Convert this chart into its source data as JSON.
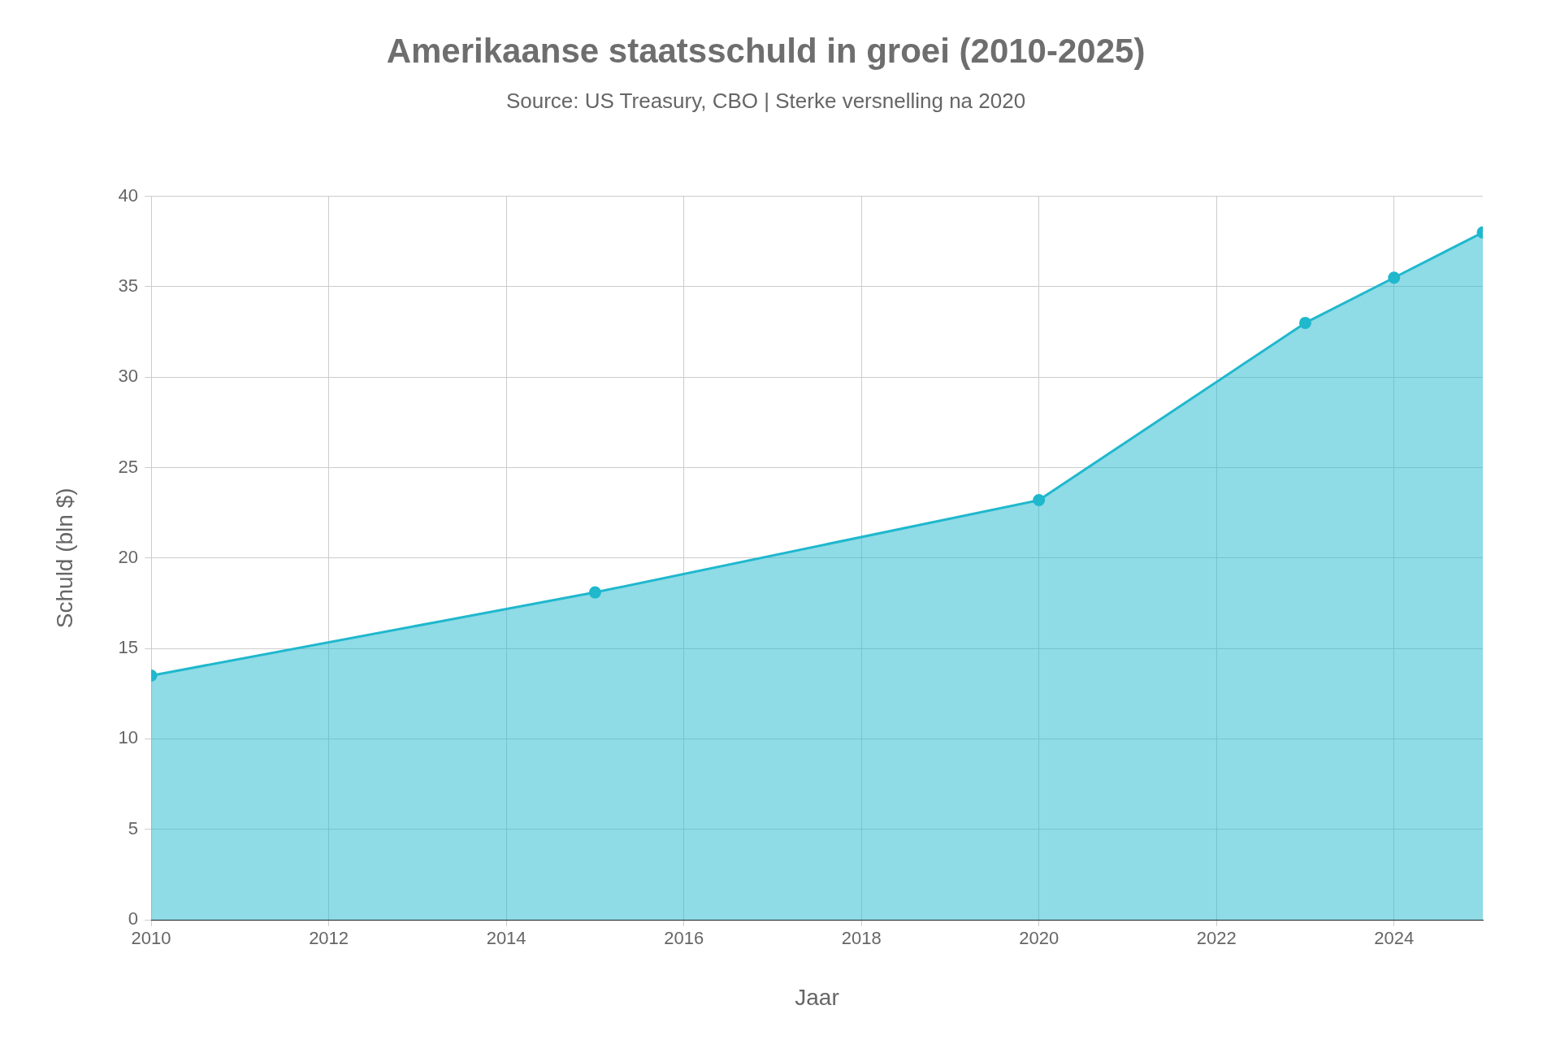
{
  "chart_data": {
    "type": "area",
    "title": "Amerikaanse staatsschuld in groei (2010-2025)",
    "subtitle": "Source: US Treasury, CBO | Sterke versnelling na 2020",
    "xlabel": "Jaar",
    "ylabel": "Schuld (bln $)",
    "x": [
      2010,
      2015,
      2020,
      2023,
      2024,
      2025
    ],
    "series": [
      {
        "color": "#1fb8cd",
        "values": [
          13.5,
          18.1,
          23.2,
          33.0,
          35.5,
          38.0
        ]
      }
    ],
    "xlim": [
      2010,
      2025
    ],
    "xticks": [
      2010,
      2012,
      2014,
      2016,
      2018,
      2020,
      2022,
      2024
    ],
    "ylim": [
      0,
      40
    ],
    "yticks": [
      0,
      5,
      10,
      15,
      20,
      25,
      30,
      35,
      40
    ],
    "grid": true,
    "legend": false,
    "marker": "circle",
    "line_style": "solid"
  }
}
